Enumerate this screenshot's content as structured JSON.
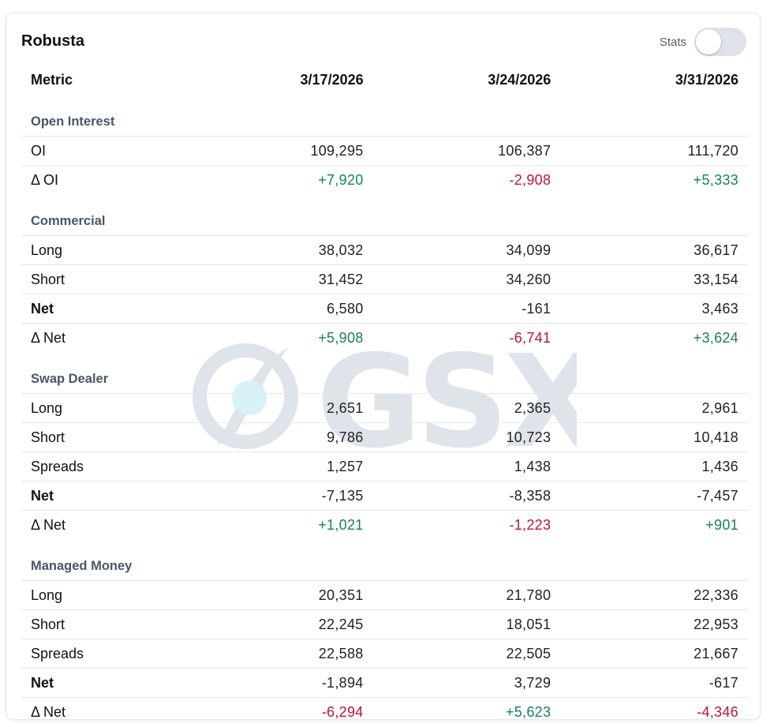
{
  "card": {
    "title": "Robusta",
    "stats_label": "Stats",
    "stats_enabled": false
  },
  "watermark": {
    "text": "GSX"
  },
  "table": {
    "headers": [
      "Metric",
      "3/17/2026",
      "3/24/2026",
      "3/31/2026"
    ],
    "sections": [
      {
        "title": "Open Interest",
        "rows": [
          {
            "label": "OI",
            "bold": false,
            "values": [
              "109,295",
              "106,387",
              "111,720"
            ]
          },
          {
            "label": "Δ OI",
            "bold": false,
            "values": [
              "+7,920",
              "-2,908",
              "+5,333"
            ]
          }
        ]
      },
      {
        "title": "Commercial",
        "rows": [
          {
            "label": "Long",
            "bold": false,
            "values": [
              "38,032",
              "34,099",
              "36,617"
            ]
          },
          {
            "label": "Short",
            "bold": false,
            "values": [
              "31,452",
              "34,260",
              "33,154"
            ]
          },
          {
            "label": "Net",
            "bold": true,
            "values": [
              "6,580",
              "-161",
              "3,463"
            ]
          },
          {
            "label": "Δ Net",
            "bold": false,
            "values": [
              "+5,908",
              "-6,741",
              "+3,624"
            ]
          }
        ]
      },
      {
        "title": "Swap Dealer",
        "rows": [
          {
            "label": "Long",
            "bold": false,
            "values": [
              "2,651",
              "2,365",
              "2,961"
            ]
          },
          {
            "label": "Short",
            "bold": false,
            "values": [
              "9,786",
              "10,723",
              "10,418"
            ]
          },
          {
            "label": "Spreads",
            "bold": false,
            "values": [
              "1,257",
              "1,438",
              "1,436"
            ]
          },
          {
            "label": "Net",
            "bold": true,
            "values": [
              "-7,135",
              "-8,358",
              "-7,457"
            ]
          },
          {
            "label": "Δ Net",
            "bold": false,
            "values": [
              "+1,021",
              "-1,223",
              "+901"
            ]
          }
        ]
      },
      {
        "title": "Managed Money",
        "rows": [
          {
            "label": "Long",
            "bold": false,
            "values": [
              "20,351",
              "21,780",
              "22,336"
            ]
          },
          {
            "label": "Short",
            "bold": false,
            "values": [
              "22,245",
              "18,051",
              "22,953"
            ]
          },
          {
            "label": "Spreads",
            "bold": false,
            "values": [
              "22,588",
              "22,505",
              "21,667"
            ]
          },
          {
            "label": "Net",
            "bold": true,
            "values": [
              "-1,894",
              "3,729",
              "-617"
            ]
          },
          {
            "label": "Δ Net",
            "bold": false,
            "values": [
              "-6,294",
              "+5,623",
              "-4,346"
            ]
          }
        ]
      }
    ]
  },
  "colors": {
    "positive": "#14825a",
    "negative": "#c0123c",
    "section": "#4a5668",
    "watermark": "#dfe3ea",
    "watermark_dot": "#d6f1f8"
  }
}
